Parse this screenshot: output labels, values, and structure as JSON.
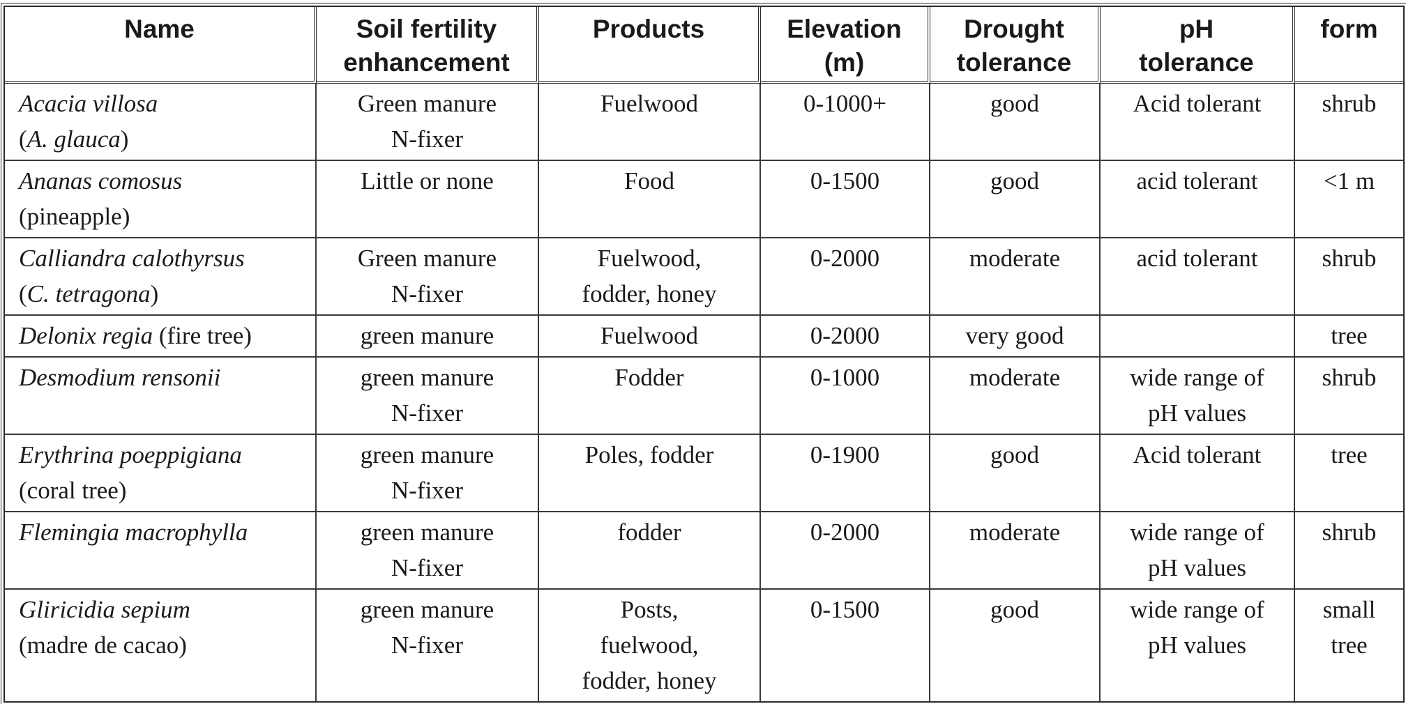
{
  "columns": [
    {
      "line1": "Name",
      "line2": ""
    },
    {
      "line1": "Soil fertility",
      "line2": "enhancement"
    },
    {
      "line1": "Products",
      "line2": ""
    },
    {
      "line1": "Elevation",
      "line2": "(m)"
    },
    {
      "line1": "Drought",
      "line2": "tolerance"
    },
    {
      "line1": "pH",
      "line2": "tolerance"
    },
    {
      "line1": "form",
      "line2": ""
    }
  ],
  "rows": [
    {
      "name": [
        {
          "italic": "Acacia villosa",
          "plain": ""
        },
        {
          "prefix": "(",
          "italic": "A. glauca",
          "plain": ")"
        }
      ],
      "fertility": [
        "Green manure",
        "N-fixer"
      ],
      "products": [
        "Fuelwood"
      ],
      "elevation": [
        "0-1000+"
      ],
      "drought": [
        "good"
      ],
      "ph": [
        "Acid tolerant"
      ],
      "form": [
        "shrub"
      ]
    },
    {
      "name": [
        {
          "italic": "Ananas comosus",
          "plain": ""
        },
        {
          "prefix": "",
          "italic": "",
          "plain": "(pineapple)"
        }
      ],
      "fertility": [
        "Little or none"
      ],
      "products": [
        "Food"
      ],
      "elevation": [
        "0-1500"
      ],
      "drought": [
        "good"
      ],
      "ph": [
        "acid tolerant"
      ],
      "form": [
        "<1 m"
      ]
    },
    {
      "name": [
        {
          "italic": "Calliandra calothyrsus",
          "plain": ""
        },
        {
          "prefix": "(",
          "italic": "C. tetragona",
          "plain": ")"
        }
      ],
      "fertility": [
        "Green manure",
        "N-fixer"
      ],
      "products": [
        "Fuelwood,",
        "fodder, honey"
      ],
      "elevation": [
        "0-2000"
      ],
      "drought": [
        "moderate"
      ],
      "ph": [
        "acid tolerant"
      ],
      "form": [
        "shrub"
      ]
    },
    {
      "name": [
        {
          "italic": "Delonix regia",
          "plain": " (fire tree)"
        }
      ],
      "fertility": [
        "green manure"
      ],
      "products": [
        "Fuelwood"
      ],
      "elevation": [
        "0-2000"
      ],
      "drought": [
        "very good"
      ],
      "ph": [
        ""
      ],
      "form": [
        "tree"
      ]
    },
    {
      "name": [
        {
          "italic": "Desmodium rensonii",
          "plain": ""
        }
      ],
      "fertility": [
        "green manure",
        "N-fixer"
      ],
      "products": [
        "Fodder"
      ],
      "elevation": [
        "0-1000"
      ],
      "drought": [
        "moderate"
      ],
      "ph": [
        "wide range of",
        "pH values"
      ],
      "form": [
        "shrub"
      ]
    },
    {
      "name": [
        {
          "italic": "Erythrina poeppigiana",
          "plain": ""
        },
        {
          "prefix": "",
          "italic": "",
          "plain": "(coral tree)"
        }
      ],
      "fertility": [
        "green manure",
        "N-fixer"
      ],
      "products": [
        "Poles, fodder"
      ],
      "elevation": [
        "0-1900"
      ],
      "drought": [
        "good"
      ],
      "ph": [
        "Acid tolerant"
      ],
      "form": [
        "tree"
      ]
    },
    {
      "name": [
        {
          "italic": "Flemingia macrophylla",
          "plain": ""
        }
      ],
      "fertility": [
        "green manure",
        "N-fixer"
      ],
      "products": [
        "fodder"
      ],
      "elevation": [
        "0-2000"
      ],
      "drought": [
        "moderate"
      ],
      "ph": [
        "wide range of",
        "pH values"
      ],
      "form": [
        "shrub"
      ]
    },
    {
      "name": [
        {
          "italic": "Gliricidia sepium",
          "plain": ""
        },
        {
          "prefix": "",
          "italic": "",
          "plain": "(madre de cacao)"
        }
      ],
      "fertility": [
        "green manure",
        "N-fixer"
      ],
      "products": [
        "Posts,",
        "fuelwood,",
        "fodder, honey"
      ],
      "elevation": [
        "0-1500"
      ],
      "drought": [
        "good"
      ],
      "ph": [
        "wide range of",
        "pH values"
      ],
      "form": [
        "small",
        "tree"
      ]
    }
  ]
}
